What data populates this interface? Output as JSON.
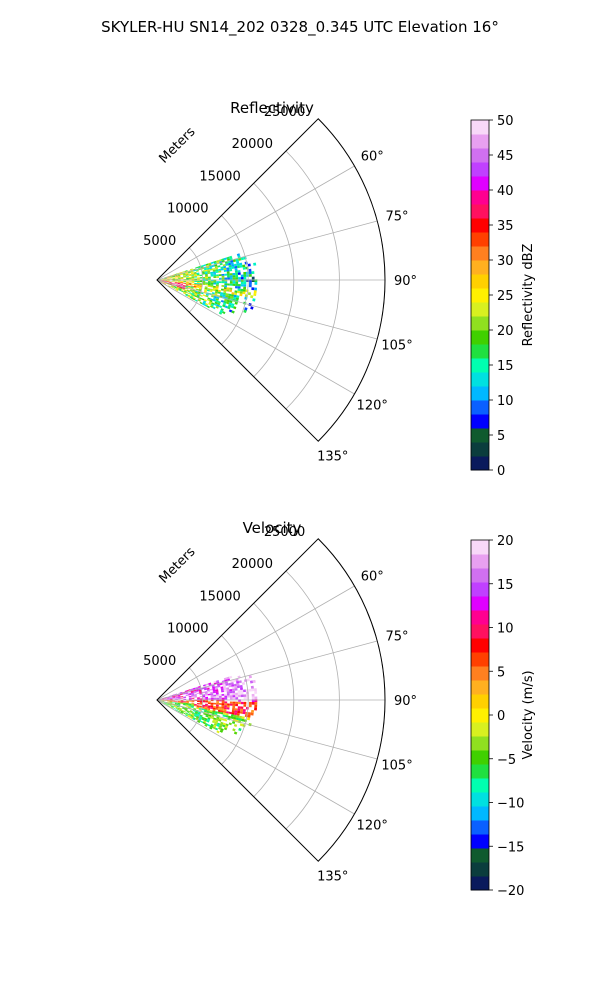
{
  "figure": {
    "title": "SKYLER-HU  SN14_202  0328_0.345 UTC Elevation 16°"
  },
  "chart_data": [
    {
      "type": "heatmap",
      "projection": "polar-sector",
      "title": "Reflectivity",
      "radial_label": "Meters",
      "range_ticks": [
        "5000",
        "10000",
        "15000",
        "20000",
        "25000"
      ],
      "range_values": [
        5000,
        10000,
        15000,
        20000,
        25000
      ],
      "range_max": 25000,
      "azimuth_range_deg": [
        45,
        135
      ],
      "azimuth_ticks": [
        "60°",
        "75°",
        "90°",
        "105°",
        "120°",
        "135°"
      ],
      "azimuth_values": [
        60,
        75,
        90,
        105,
        120,
        135
      ],
      "grid": true,
      "colorbar": {
        "label": "Reflectivity dBZ",
        "min": 0,
        "max": 50,
        "ticks": [
          "0",
          "5",
          "10",
          "15",
          "20",
          "25",
          "30",
          "35",
          "40",
          "45",
          "50"
        ],
        "tick_values": [
          0,
          5,
          10,
          15,
          20,
          25,
          30,
          35,
          40,
          45,
          50
        ],
        "colors": [
          "#0a1a5c",
          "#0b3d3d",
          "#0f5a2e",
          "#0000ff",
          "#0a60ff",
          "#00b8ff",
          "#00e0e0",
          "#00ffb0",
          "#20e040",
          "#40d000",
          "#90e020",
          "#d8f020",
          "#fff000",
          "#ffd000",
          "#ffb020",
          "#ff8020",
          "#ff4000",
          "#ff0000",
          "#ff1060",
          "#ff0090",
          "#e000ff",
          "#c040ff",
          "#d070f0",
          "#e8a0f0",
          "#f8d8f8"
        ]
      },
      "echo": {
        "range_extent_m": [
          0,
          11000
        ],
        "azimuth_extent_deg": [
          72,
          118
        ],
        "dominant_values_dbz": [
          15,
          20,
          25
        ],
        "max_value_dbz": 40
      }
    },
    {
      "type": "heatmap",
      "projection": "polar-sector",
      "title": "Velocity",
      "radial_label": "Meters",
      "range_ticks": [
        "5000",
        "10000",
        "15000",
        "20000",
        "25000"
      ],
      "range_values": [
        5000,
        10000,
        15000,
        20000,
        25000
      ],
      "range_max": 25000,
      "azimuth_range_deg": [
        45,
        135
      ],
      "azimuth_ticks": [
        "60°",
        "75°",
        "90°",
        "105°",
        "120°",
        "135°"
      ],
      "azimuth_values": [
        60,
        75,
        90,
        105,
        120,
        135
      ],
      "grid": true,
      "colorbar": {
        "label": "Velocity (m/s)",
        "min": -20,
        "max": 20,
        "ticks": [
          "−20",
          "−15",
          "−10",
          "−5",
          "0",
          "5",
          "10",
          "15",
          "20"
        ],
        "tick_values": [
          -20,
          -15,
          -10,
          -5,
          0,
          5,
          10,
          15,
          20
        ],
        "colors": [
          "#0a1a5c",
          "#0b3d3d",
          "#0f5a2e",
          "#0000ff",
          "#0a60ff",
          "#00b8ff",
          "#00e0e0",
          "#00ffb0",
          "#20e040",
          "#40d000",
          "#90e020",
          "#d8f020",
          "#fff000",
          "#ffd000",
          "#ffb020",
          "#ff8020",
          "#ff4000",
          "#ff0000",
          "#ff1060",
          "#ff0090",
          "#e000ff",
          "#c040ff",
          "#d070f0",
          "#e8a0f0",
          "#f8d8f8"
        ]
      },
      "echo": {
        "range_extent_m": [
          0,
          11000
        ],
        "azimuth_extent_deg": [
          72,
          118
        ],
        "dominant_values_ms": [
          -8,
          0,
          10
        ],
        "max_value_ms": 17
      }
    }
  ]
}
